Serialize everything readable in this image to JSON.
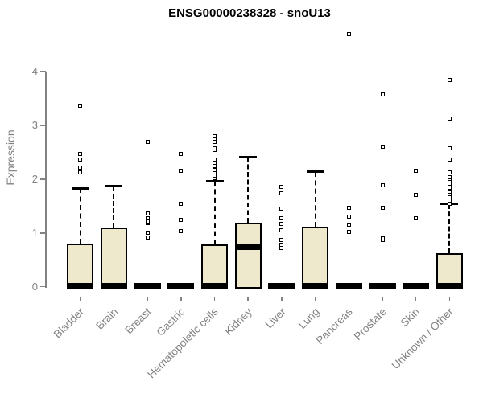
{
  "title": "ENSG00000238328 - snoU13",
  "chart_data": {
    "type": "boxplot",
    "title": "ENSG00000238328 - snoU13",
    "xlabel": "",
    "ylabel": "Expression",
    "ylim": [
      0,
      4
    ],
    "yticks": [
      0,
      1,
      2,
      3,
      4
    ],
    "grid": false,
    "legend": "none",
    "categories": [
      "Bladder",
      "Brain",
      "Breast",
      "Gastric",
      "Hematopoietic cells",
      "Kidney",
      "Liver",
      "Lung",
      "Pancreas",
      "Prostate",
      "Skin",
      "Unknown / Other"
    ],
    "series": [
      {
        "label": "Bladder",
        "q1": 0,
        "median": 0.02,
        "q3": 0.81,
        "whisker_low": 0,
        "whisker_high": 1.83,
        "outliers": [
          2.13,
          2.22,
          2.36,
          2.47,
          3.37
        ]
      },
      {
        "label": "Brain",
        "q1": 0,
        "median": 0.02,
        "q3": 1.1,
        "whisker_low": 0,
        "whisker_high": 1.87,
        "outliers": []
      },
      {
        "label": "Breast",
        "q1": 0,
        "median": 0.02,
        "q3": 0.03,
        "whisker_low": 0,
        "whisker_high": 0.03,
        "outliers": [
          0.92,
          1.0,
          1.18,
          1.22,
          1.28,
          1.37,
          2.7
        ]
      },
      {
        "label": "Gastric",
        "q1": 0,
        "median": 0.02,
        "q3": 0.03,
        "whisker_low": 0,
        "whisker_high": 0.03,
        "outliers": [
          1.04,
          1.24,
          1.54,
          2.15,
          2.47
        ]
      },
      {
        "label": "Hematopoietic cells",
        "q1": 0,
        "median": 0.02,
        "q3": 0.79,
        "whisker_low": 0,
        "whisker_high": 1.97,
        "outliers": [
          2.02,
          2.07,
          2.12,
          2.17,
          2.24,
          2.3,
          2.37,
          2.55,
          2.58,
          2.7,
          2.75,
          2.8
        ]
      },
      {
        "label": "Kidney",
        "q1": 0,
        "median": 0.74,
        "q3": 1.19,
        "whisker_low": 0,
        "whisker_high": 2.42,
        "outliers": []
      },
      {
        "label": "Liver",
        "q1": 0,
        "median": 0.02,
        "q3": 0.03,
        "whisker_low": 0,
        "whisker_high": 0.03,
        "outliers": [
          0.72,
          0.78,
          0.87,
          1.05,
          1.17,
          1.27,
          1.45,
          1.73,
          1.85
        ]
      },
      {
        "label": "Lung",
        "q1": 0,
        "median": 0.02,
        "q3": 1.12,
        "whisker_low": 0,
        "whisker_high": 2.14,
        "outliers": []
      },
      {
        "label": "Pancreas",
        "q1": 0,
        "median": 0.02,
        "q3": 0.03,
        "whisker_low": 0,
        "whisker_high": 0.03,
        "outliers": [
          1.02,
          1.16,
          1.3,
          1.47,
          4.7
        ]
      },
      {
        "label": "Prostate",
        "q1": 0,
        "median": 0.02,
        "q3": 0.03,
        "whisker_low": 0,
        "whisker_high": 0.03,
        "outliers": [
          0.87,
          0.9,
          1.47,
          1.89,
          2.61,
          3.57
        ]
      },
      {
        "label": "Skin",
        "q1": 0,
        "median": 0.02,
        "q3": 0.03,
        "whisker_low": 0,
        "whisker_high": 0.03,
        "outliers": [
          1.28,
          1.7,
          2.15
        ]
      },
      {
        "label": "Unknown / Other",
        "q1": 0,
        "median": 0.02,
        "q3": 0.63,
        "whisker_low": 0,
        "whisker_high": 1.54,
        "outliers": [
          1.55,
          1.6,
          1.66,
          1.72,
          1.77,
          1.84,
          1.88,
          1.92,
          1.96,
          2.0,
          2.04,
          2.12,
          2.37,
          2.57,
          3.12,
          3.84
        ]
      }
    ],
    "colors": {
      "box_fill": "#EEE8CD",
      "box_border": "#000000",
      "median": "#000000",
      "outlier": "#000000",
      "axis": "#828282",
      "tick_labels": "#828282",
      "title": "#000000",
      "background": "#ffffff"
    }
  }
}
